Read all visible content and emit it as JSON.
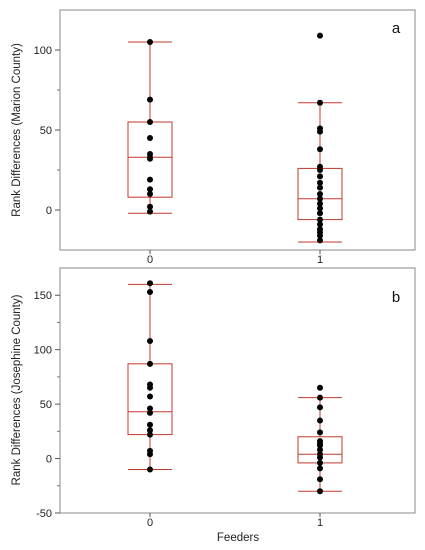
{
  "chart_data": [
    {
      "type": "box",
      "panel_label": "a",
      "ylabel": "Rank Differences (Marion County)",
      "xlabel": "",
      "categories": [
        "0",
        "1"
      ],
      "y_ticks": [
        0,
        50,
        100
      ],
      "ylim": [
        -25,
        125
      ],
      "boxes": [
        {
          "category": "0",
          "whisker_low": -2,
          "q1": 8,
          "median": 33,
          "q3": 55,
          "whisker_high": 105
        },
        {
          "category": "1",
          "whisker_low": -20,
          "q1": -6,
          "median": 7,
          "q3": 26,
          "whisker_high": 67
        }
      ],
      "points": [
        {
          "category": "0",
          "values": [
            105,
            69,
            55,
            45,
            35,
            33,
            32,
            19,
            13,
            10,
            2,
            -1
          ]
        },
        {
          "category": "1",
          "values": [
            109,
            67,
            51,
            49,
            38,
            27,
            25,
            21,
            17,
            14,
            10,
            7,
            4,
            1,
            -2,
            -6,
            -9,
            -12,
            -14,
            -16,
            -19
          ]
        }
      ],
      "colors": {
        "box": "#c0392b",
        "point": "#000000"
      }
    },
    {
      "type": "box",
      "panel_label": "b",
      "ylabel": "Rank Differences (Josephine County)",
      "xlabel": "Feeders",
      "categories": [
        "0",
        "1"
      ],
      "y_ticks": [
        -50,
        0,
        50,
        100,
        150
      ],
      "ylim": [
        -50,
        175
      ],
      "boxes": [
        {
          "category": "0",
          "whisker_low": -10,
          "q1": 22,
          "median": 43,
          "q3": 87,
          "whisker_high": 160
        },
        {
          "category": "1",
          "whisker_low": -30,
          "q1": -4,
          "median": 4,
          "q3": 20,
          "whisker_high": 56
        }
      ],
      "points": [
        {
          "category": "0",
          "values": [
            161,
            153,
            108,
            87,
            68,
            65,
            57,
            46,
            42,
            31,
            26,
            22,
            7,
            4,
            -10
          ]
        },
        {
          "category": "1",
          "values": [
            65,
            56,
            47,
            35,
            24,
            16,
            14,
            12,
            8,
            4,
            1,
            -4,
            -9,
            -19,
            -30
          ]
        }
      ],
      "colors": {
        "box": "#c0392b",
        "point": "#000000"
      }
    }
  ]
}
